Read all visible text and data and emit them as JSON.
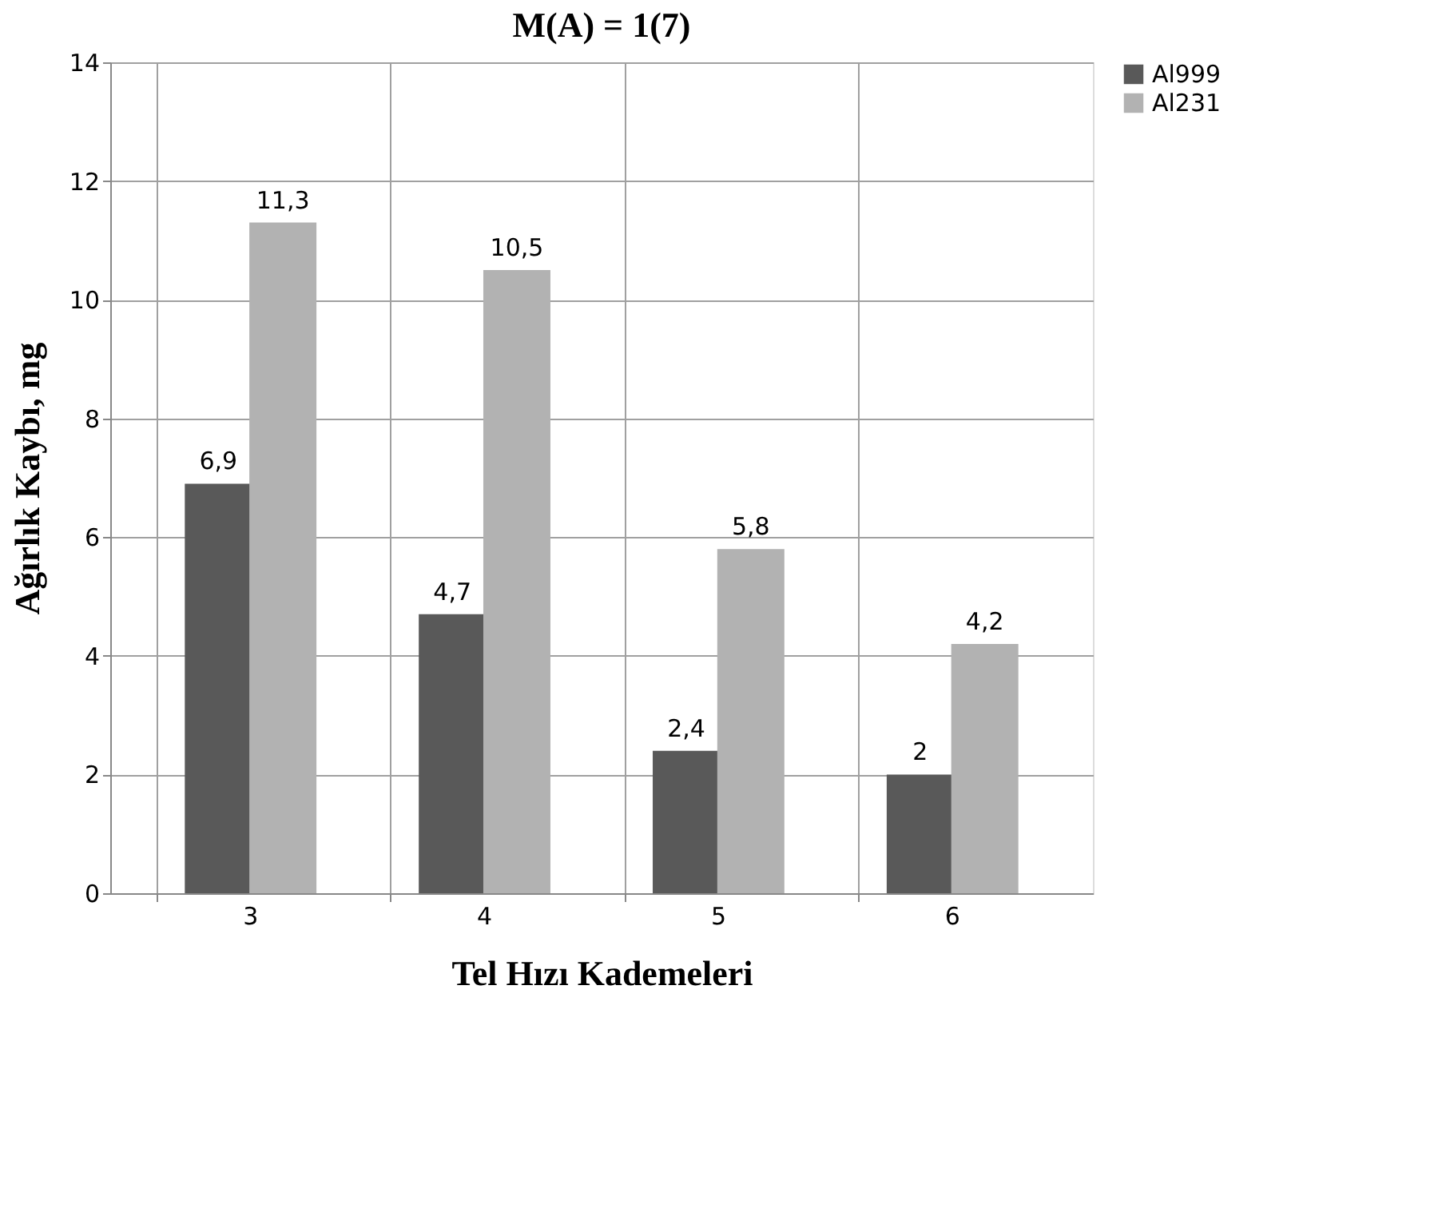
{
  "chart_data": {
    "type": "bar",
    "title": "M(A) = 1(7)",
    "xlabel": "Tel Hızı Kademeleri",
    "ylabel": "Ağırlık Kaybı, mg",
    "categories": [
      "3",
      "4",
      "5",
      "6"
    ],
    "series": [
      {
        "name": "Al999",
        "color": "#595959",
        "values": [
          6.9,
          4.7,
          2.4,
          2.0
        ],
        "value_labels": [
          "6,9",
          "4,7",
          "2,4",
          "2"
        ]
      },
      {
        "name": "Al231",
        "color": "#b2b2b2",
        "values": [
          11.3,
          10.5,
          5.8,
          4.2
        ],
        "value_labels": [
          "11,3",
          "10,5",
          "5,8",
          "4,2"
        ]
      }
    ],
    "ylim": [
      0,
      14
    ],
    "yticks": [
      0,
      2,
      4,
      6,
      8,
      10,
      12,
      14
    ],
    "grid": true,
    "legend": "right"
  }
}
